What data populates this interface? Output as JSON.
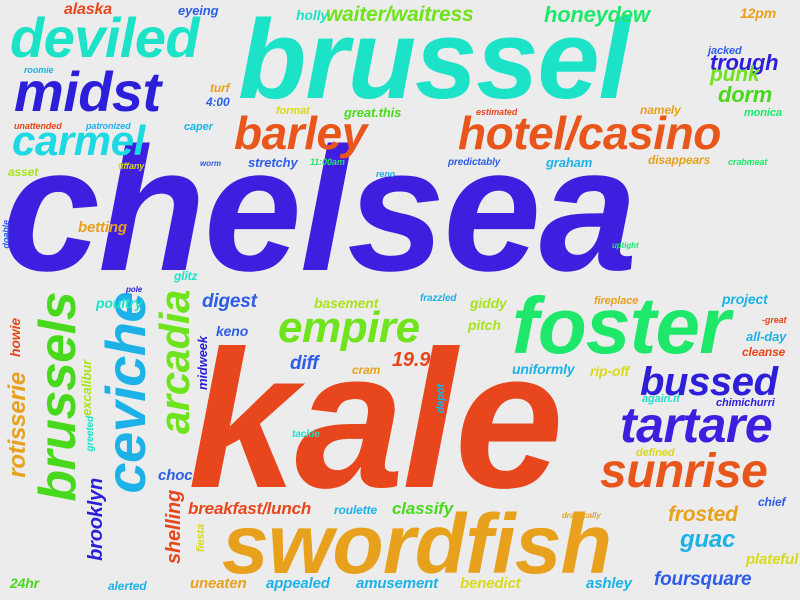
{
  "words": [
    {
      "text": "chelsea",
      "color": "#3f1ee0"
    },
    {
      "text": "kale",
      "color": "#e8461c"
    },
    {
      "text": "brussel",
      "color": "#1ce3c8"
    },
    {
      "text": "swordfish",
      "color": "#e8a11c"
    },
    {
      "text": "foster",
      "color": "#1ee86a"
    },
    {
      "text": "deviled",
      "color": "#1ce3c8"
    },
    {
      "text": "midst",
      "color": "#2d1ed9"
    },
    {
      "text": "hotel/casino",
      "color": "#e8561c"
    },
    {
      "text": "barley",
      "color": "#e8561c"
    },
    {
      "text": "carmel",
      "color": "#1cd9e3"
    },
    {
      "text": "empire",
      "color": "#6fe31c"
    },
    {
      "text": "tartare",
      "color": "#3f1ee0"
    },
    {
      "text": "bussed",
      "color": "#2d1ed9"
    },
    {
      "text": "sunrise",
      "color": "#e8561c"
    },
    {
      "text": "ceviche",
      "color": "#1cb2e8"
    },
    {
      "text": "brussels",
      "color": "#49d91c"
    },
    {
      "text": "arcadia",
      "color": "#6fe31c"
    },
    {
      "text": "rotisserie",
      "color": "#e8a11c"
    },
    {
      "text": "brooklyn",
      "color": "#2d1ed9"
    },
    {
      "text": "shelling",
      "color": "#e8461c"
    },
    {
      "text": "midweek",
      "color": "#2d1ed9"
    },
    {
      "text": "excalibur",
      "color": "#a8e31c"
    },
    {
      "text": "howie",
      "color": "#e8461c"
    },
    {
      "text": "greeted",
      "color": "#1ce3c8"
    },
    {
      "text": "fiesta",
      "color": "#d9d91c"
    },
    {
      "text": "depot",
      "color": "#1cb2e8"
    },
    {
      "text": "doable",
      "color": "#2d5de8"
    },
    {
      "text": "waiter/waitress",
      "color": "#6fe31c"
    },
    {
      "text": "honeydew",
      "color": "#1ee86a"
    },
    {
      "text": "trough",
      "color": "#2d1ed9"
    },
    {
      "text": "punk",
      "color": "#6fe31c"
    },
    {
      "text": "dorm",
      "color": "#49d91c"
    },
    {
      "text": "12pm",
      "color": "#e8a11c"
    },
    {
      "text": "alaska",
      "color": "#e8461c"
    },
    {
      "text": "eyeing",
      "color": "#2d5de8"
    },
    {
      "text": "holly",
      "color": "#1ce3c8"
    },
    {
      "text": "jacked",
      "color": "#2d5de8"
    },
    {
      "text": "roomie",
      "color": "#1cb2e8"
    },
    {
      "text": "turf",
      "color": "#e8a11c"
    },
    {
      "text": "4:00",
      "color": "#2d5de8"
    },
    {
      "text": "format",
      "color": "#d9d91c"
    },
    {
      "text": "great.this",
      "color": "#49d91c"
    },
    {
      "text": "estimated",
      "color": "#e8461c"
    },
    {
      "text": "namely",
      "color": "#e8a11c"
    },
    {
      "text": "monica",
      "color": "#1ee86a"
    },
    {
      "text": "unattended",
      "color": "#e8461c"
    },
    {
      "text": "patronized",
      "color": "#1cb2e8"
    },
    {
      "text": "caper",
      "color": "#1cb2e8"
    },
    {
      "text": "asset",
      "color": "#a8e31c"
    },
    {
      "text": "tiffany",
      "color": "#d9d91c"
    },
    {
      "text": "worm",
      "color": "#2d5de8"
    },
    {
      "text": "stretchy",
      "color": "#2d5de8"
    },
    {
      "text": "11:00am",
      "color": "#1ee86a"
    },
    {
      "text": "reno",
      "color": "#1cb2e8"
    },
    {
      "text": "predictably",
      "color": "#2d5de8"
    },
    {
      "text": "graham",
      "color": "#1cb2e8"
    },
    {
      "text": "disappears",
      "color": "#e8a11c"
    },
    {
      "text": "crabmeat",
      "color": "#1ee86a"
    },
    {
      "text": "betting",
      "color": "#e8a11c"
    },
    {
      "text": "uptight",
      "color": "#1ee86a"
    },
    {
      "text": "pole",
      "color": "#2d1ed9"
    },
    {
      "text": "glitz",
      "color": "#1ce3c8"
    },
    {
      "text": "poultry",
      "color": "#1ce3c8"
    },
    {
      "text": "digest",
      "color": "#2d5de8"
    },
    {
      "text": "basement",
      "color": "#a8e31c"
    },
    {
      "text": "frazzled",
      "color": "#1cb2e8"
    },
    {
      "text": "giddy",
      "color": "#a8e31c"
    },
    {
      "text": "fireplace",
      "color": "#e8a11c"
    },
    {
      "text": "project",
      "color": "#1cb2e8"
    },
    {
      "text": "-great",
      "color": "#e8461c"
    },
    {
      "text": "keno",
      "color": "#2d5de8"
    },
    {
      "text": "pitch",
      "color": "#a8e31c"
    },
    {
      "text": "all-day",
      "color": "#1cb2e8"
    },
    {
      "text": "cleanse",
      "color": "#e8461c"
    },
    {
      "text": "diff",
      "color": "#2d5de8"
    },
    {
      "text": "19.95",
      "color": "#e8461c"
    },
    {
      "text": "cram",
      "color": "#e8a11c"
    },
    {
      "text": "uniformly",
      "color": "#1cb2e8"
    },
    {
      "text": "rip-off",
      "color": "#d9d91c"
    },
    {
      "text": "again.it",
      "color": "#1ce3c8"
    },
    {
      "text": "chimichurri",
      "color": "#2d1ed9"
    },
    {
      "text": "tackle",
      "color": "#1ce3c8"
    },
    {
      "text": "defined",
      "color": "#d9d91c"
    },
    {
      "text": "choc",
      "color": "#2d5de8"
    },
    {
      "text": "chief",
      "color": "#2d5de8"
    },
    {
      "text": "breakfast/lunch",
      "color": "#e8461c"
    },
    {
      "text": "roulette",
      "color": "#1cb2e8"
    },
    {
      "text": "classify",
      "color": "#49d91c"
    },
    {
      "text": "drastically",
      "color": "#e8a11c"
    },
    {
      "text": "frosted",
      "color": "#e8a11c"
    },
    {
      "text": "guac",
      "color": "#1cb2e8"
    },
    {
      "text": "plateful",
      "color": "#d9d91c"
    },
    {
      "text": "24hr",
      "color": "#49d91c"
    },
    {
      "text": "alerted",
      "color": "#1cb2e8"
    },
    {
      "text": "uneaten",
      "color": "#e8a11c"
    },
    {
      "text": "appealed",
      "color": "#1cb2e8"
    },
    {
      "text": "amusement",
      "color": "#1cb2e8"
    },
    {
      "text": "benedict",
      "color": "#d9d91c"
    },
    {
      "text": "ashley",
      "color": "#1cb2e8"
    },
    {
      "text": "foursquare",
      "color": "#2d5de8"
    }
  ]
}
